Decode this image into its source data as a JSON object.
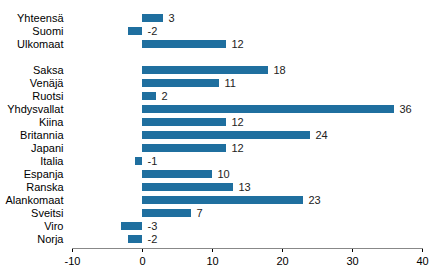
{
  "chart_data": {
    "type": "bar",
    "orientation": "horizontal",
    "categories": [
      "Yhteensä",
      "Suomi",
      "Ulkomaat",
      null,
      "Saksa",
      "Venäjä",
      "Ruotsi",
      "Yhdysvallat",
      "Kiina",
      "Britannia",
      "Japani",
      "Italia",
      "Espanja",
      "Ranska",
      "Alankomaat",
      "Sveitsi",
      "Viro",
      "Norja"
    ],
    "values": [
      3,
      -2,
      12,
      null,
      18,
      11,
      2,
      36,
      12,
      24,
      12,
      -1,
      10,
      13,
      23,
      7,
      -3,
      -2
    ],
    "color": "#1f6f9f",
    "xlim": [
      -10,
      40
    ],
    "xticks": [
      -10,
      0,
      10,
      20,
      30,
      40
    ],
    "grid": false,
    "data_labels": true
  }
}
